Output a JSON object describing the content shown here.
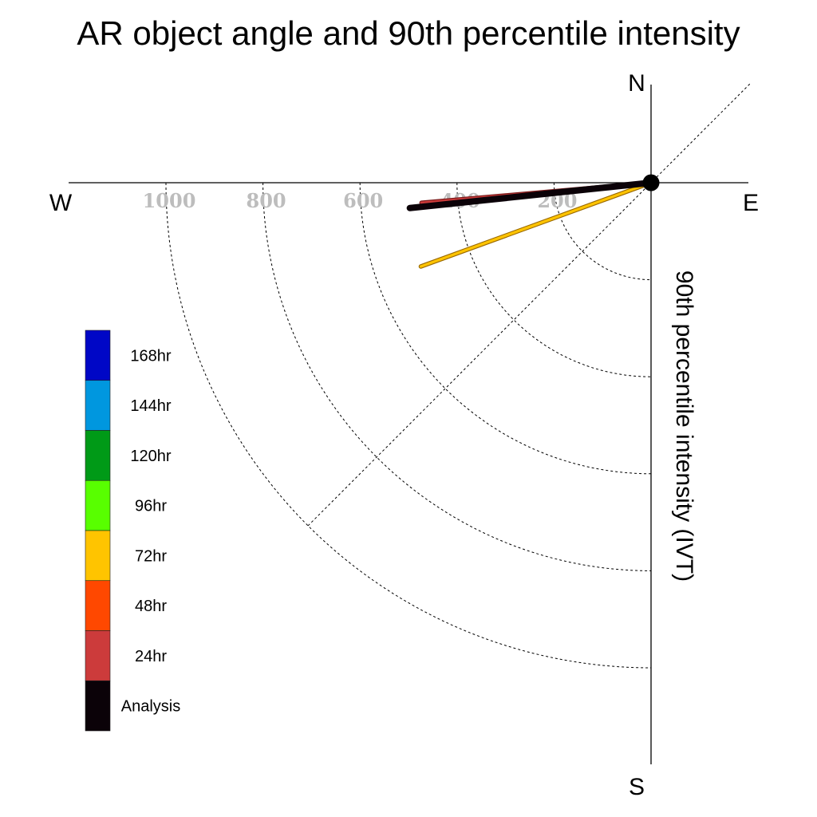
{
  "chart_data": {
    "type": "polar-quadrant",
    "title": "AR object angle and 90th percentile intensity",
    "ylabel": "90th percentile intensity (IVT)",
    "compass": {
      "north": "N",
      "south": "S",
      "east": "E",
      "west": "W"
    },
    "r_ticks": [
      200,
      400,
      600,
      800,
      1000
    ],
    "r_tick_labels": [
      "200",
      "400",
      "600",
      "800",
      "1000"
    ],
    "rmax": 1000,
    "series": [
      {
        "name": "72hr",
        "intensity": 505,
        "angle_below_west_deg": 20,
        "color": "#ffc400",
        "edge": "#9a6a00"
      },
      {
        "name": "24hr",
        "intensity": 475,
        "angle_below_west_deg": 5,
        "color": "#cc3b3b",
        "edge": "#7a1a1a"
      },
      {
        "name": "Analysis",
        "intensity": 500,
        "angle_below_west_deg": 6,
        "color": "#0b0208",
        "edge": "#0b0208"
      }
    ],
    "legend": [
      {
        "label": "168hr",
        "color": "#0007c6"
      },
      {
        "label": "144hr",
        "color": "#0097df"
      },
      {
        "label": "120hr",
        "color": "#009a17"
      },
      {
        "label": "96hr",
        "color": "#58ff00"
      },
      {
        "label": "72hr",
        "color": "#ffc400"
      },
      {
        "label": "48hr",
        "color": "#ff4800"
      },
      {
        "label": "24hr",
        "color": "#cc3b3b"
      },
      {
        "label": "Analysis",
        "color": "#0b0208"
      }
    ]
  }
}
